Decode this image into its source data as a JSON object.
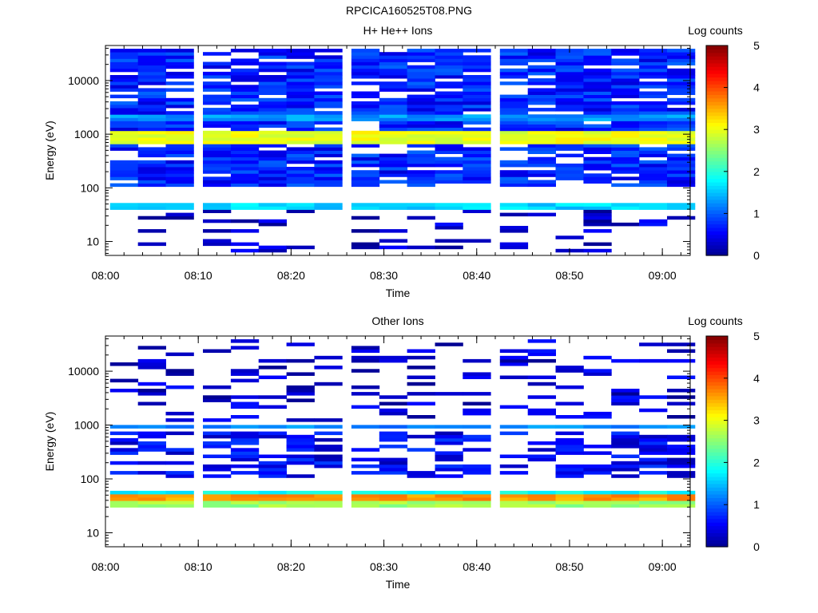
{
  "page_title": "RPCICA160525T08.PNG",
  "colormap": {
    "name": "jet",
    "stops": [
      "#00008f",
      "#0000ff",
      "#00ffff",
      "#ffff00",
      "#ff0000",
      "#800000"
    ]
  },
  "chart_data": [
    {
      "type": "heatmap",
      "title": "H+ He++ Ions",
      "xlabel": "Time",
      "ylabel": "Energy (eV)",
      "yscale": "log",
      "ylim": [
        5.5,
        45000
      ],
      "xlim": [
        "08:00",
        "09:03"
      ],
      "xticks": [
        "08:00",
        "08:10",
        "08:20",
        "08:30",
        "08:40",
        "08:50",
        "09:00"
      ],
      "yticks": [
        {
          "value": 10,
          "label": "10"
        },
        {
          "value": 100,
          "label": "100"
        },
        {
          "value": 1000,
          "label": "1000"
        },
        {
          "value": 10000,
          "label": "10000"
        }
      ],
      "colorbar": {
        "label": "Log counts",
        "range": [
          0,
          5
        ],
        "ticks": [
          "0",
          "1",
          "2",
          "3",
          "4",
          "5"
        ]
      },
      "time_bins": [
        "08:02",
        "08:05",
        "08:08",
        "08:12",
        "08:15",
        "08:18",
        "08:21",
        "08:24",
        "08:28",
        "08:31",
        "08:34",
        "08:37",
        "08:40",
        "08:44",
        "08:47",
        "08:50",
        "08:53",
        "08:56",
        "08:59",
        "09:02"
      ],
      "energy_bands_ev": [
        {
          "range": [
            700,
            1200
          ],
          "log_counts": 3.0,
          "description": "primary peak near 1 keV"
        },
        {
          "range": [
            40,
            50
          ],
          "log_counts": 1.6
        },
        {
          "range": [
            1800,
            2300
          ],
          "log_counts": 1.3
        },
        {
          "range": [
            100,
            40000
          ],
          "log_counts_typical": 0.7,
          "coverage": "mostly filled"
        },
        {
          "range": [
            6,
            40
          ],
          "log_counts_typical": 0.3,
          "coverage": "sparse"
        }
      ]
    },
    {
      "type": "heatmap",
      "title": "Other Ions",
      "xlabel": "Time",
      "ylabel": "Energy (eV)",
      "yscale": "log",
      "ylim": [
        5.5,
        45000
      ],
      "xlim": [
        "08:00",
        "09:03"
      ],
      "xticks": [
        "08:00",
        "08:10",
        "08:20",
        "08:30",
        "08:40",
        "08:50",
        "09:00"
      ],
      "yticks": [
        {
          "value": 10,
          "label": "10"
        },
        {
          "value": 100,
          "label": "100"
        },
        {
          "value": 1000,
          "label": "1000"
        },
        {
          "value": 10000,
          "label": "10000"
        }
      ],
      "colorbar": {
        "label": "Log counts",
        "range": [
          0,
          5
        ],
        "ticks": [
          "0",
          "1",
          "2",
          "3",
          "4",
          "5"
        ]
      },
      "time_bins": [
        "08:02",
        "08:05",
        "08:08",
        "08:12",
        "08:15",
        "08:18",
        "08:21",
        "08:24",
        "08:28",
        "08:31",
        "08:34",
        "08:37",
        "08:40",
        "08:44",
        "08:47",
        "08:50",
        "08:53",
        "08:56",
        "08:59",
        "09:02"
      ],
      "energy_bands_ev": [
        {
          "range": [
            38,
            50
          ],
          "log_counts": 3.6,
          "description": "primary peak near 40 eV"
        },
        {
          "range": [
            30,
            38
          ],
          "log_counts": 2.6
        },
        {
          "range": [
            50,
            60
          ],
          "log_counts": 1.8
        },
        {
          "range": [
            850,
            1050
          ],
          "log_counts": 1.2
        },
        {
          "range": [
            100,
            800
          ],
          "log_counts_typical": 0.5,
          "coverage": "partly filled"
        },
        {
          "range": [
            1100,
            40000
          ],
          "log_counts_typical": 0.3,
          "coverage": "sparse"
        }
      ]
    }
  ]
}
